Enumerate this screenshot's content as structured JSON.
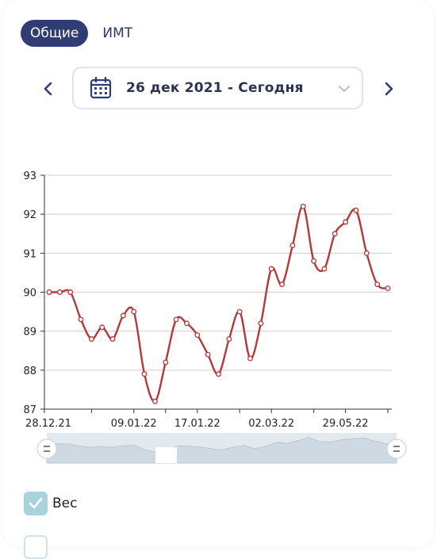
{
  "tabs": [
    {
      "label": "Общие",
      "active": true
    },
    {
      "label": "ИМТ",
      "active": false
    }
  ],
  "date_range": {
    "label": "26 дек 2021 - Сегодня"
  },
  "icons": {
    "prev": "chevron-left-icon",
    "next": "chevron-right-icon",
    "calendar": "calendar-icon",
    "dropdown": "chevron-down-icon",
    "check": "check-icon"
  },
  "legend": [
    {
      "label": "Вес",
      "checked": true
    }
  ],
  "colors": {
    "accent": "#2f3d72",
    "line": "#b5393a",
    "checkbox": "#a8d2dc",
    "navigator": "#cfd9e2"
  },
  "chart_data": {
    "type": "line",
    "smooth": true,
    "ylim": [
      87,
      93
    ],
    "yticks": [
      87,
      88,
      89,
      90,
      91,
      92,
      93
    ],
    "grid": true,
    "xtick_labels": [
      "28.12.21",
      "09.01.22",
      "17.01.22",
      "02.03.22",
      "29.05.22"
    ],
    "series": [
      {
        "values": [
          90.0,
          90.0,
          90.0,
          89.3,
          88.8,
          89.1,
          88.8,
          89.4,
          89.5,
          87.9,
          87.2,
          88.2,
          89.3,
          89.2,
          88.9,
          88.4,
          87.9,
          88.8,
          89.5,
          88.3,
          89.2,
          90.6,
          90.2,
          91.2,
          92.2,
          90.8,
          90.6,
          91.5,
          91.8,
          92.1,
          91.0,
          90.2,
          90.1
        ]
      }
    ],
    "navigator": true
  }
}
